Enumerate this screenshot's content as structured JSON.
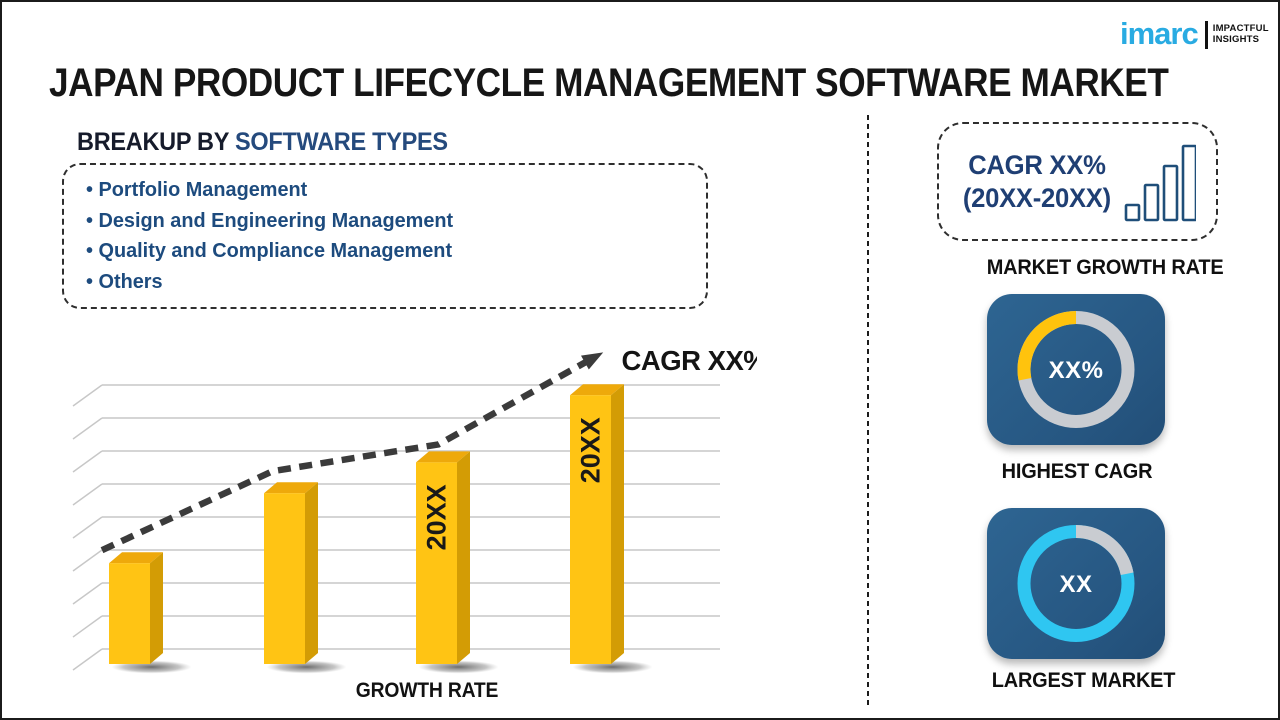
{
  "page": {
    "title": "JAPAN PRODUCT LIFECYCLE MANAGEMENT SOFTWARE MARKET"
  },
  "logo": {
    "brand": "imarc",
    "tagline_line1": "IMPACTFUL",
    "tagline_line2": "INSIGHTS",
    "brand_color": "#29ABE2"
  },
  "breakup": {
    "heading_prefix": "BREAKUP BY ",
    "heading_highlight": "SOFTWARE TYPES",
    "items": [
      "Portfolio Management",
      "Design and Engineering Management",
      "Quality and Compliance Management",
      "Others"
    ]
  },
  "chart": {
    "trend_annotation": "CAGR XX%",
    "xlabel": "GROWTH RATE",
    "bar_labels": [
      "",
      "",
      "20XX",
      "20XX"
    ]
  },
  "sidebar": {
    "growth_box": {
      "line1": "CAGR XX%",
      "line2": "(20XX-20XX)"
    },
    "market_growth_label": "MARKET GROWTH RATE",
    "highest_cagr": {
      "value": "XX%",
      "label": "HIGHEST CAGR"
    },
    "largest_market": {
      "value": "XX",
      "label": "LARGEST MARKET"
    }
  },
  "colors": {
    "bar_front": "#FFC414",
    "bar_top": "#EEA90B",
    "bar_side": "#D39C05",
    "gridline": "#c7c7c7",
    "trend_arrow": "#3b3b3b",
    "navy_text": "#1d4b7e",
    "card_bg": "#295c87",
    "ring_gray": "#C9CCD1",
    "ring_yellow": "#FFC30D",
    "ring_cyan": "#2FC6F1",
    "logo_blue": "#29ABE2"
  },
  "chart_data": [
    {
      "id": "growth-rate-bars",
      "type": "bar",
      "title": "GROWTH RATE",
      "categories": [
        "",
        "",
        "20XX",
        "20XX"
      ],
      "values": [
        36,
        61,
        72,
        96
      ],
      "ylim": [
        0,
        100
      ],
      "grid": true,
      "note": "placeholder infographic chart; values estimated from bar heights, axis unlabeled",
      "trend_annotation": "CAGR XX%",
      "trend_style": "dashed-arrow"
    },
    {
      "id": "highest-cagr-donut",
      "type": "pie",
      "center_label": "XX%",
      "title": "HIGHEST CAGR",
      "slices": [
        {
          "name": "highlight",
          "value": 28,
          "color": "#FFC30D"
        },
        {
          "name": "remainder",
          "value": 72,
          "color": "#C9CCD1"
        }
      ],
      "overlay": {
        "slice": 0,
        "direction": "ccw"
      }
    },
    {
      "id": "largest-market-donut",
      "type": "pie",
      "center_label": "XX",
      "title": "LARGEST MARKET",
      "slices": [
        {
          "name": "highlight",
          "value": 78,
          "color": "#2FC6F1"
        },
        {
          "name": "remainder",
          "value": 22,
          "color": "#C9CCD1"
        }
      ],
      "overlay": {
        "slice": 1,
        "direction": "cw"
      }
    }
  ]
}
